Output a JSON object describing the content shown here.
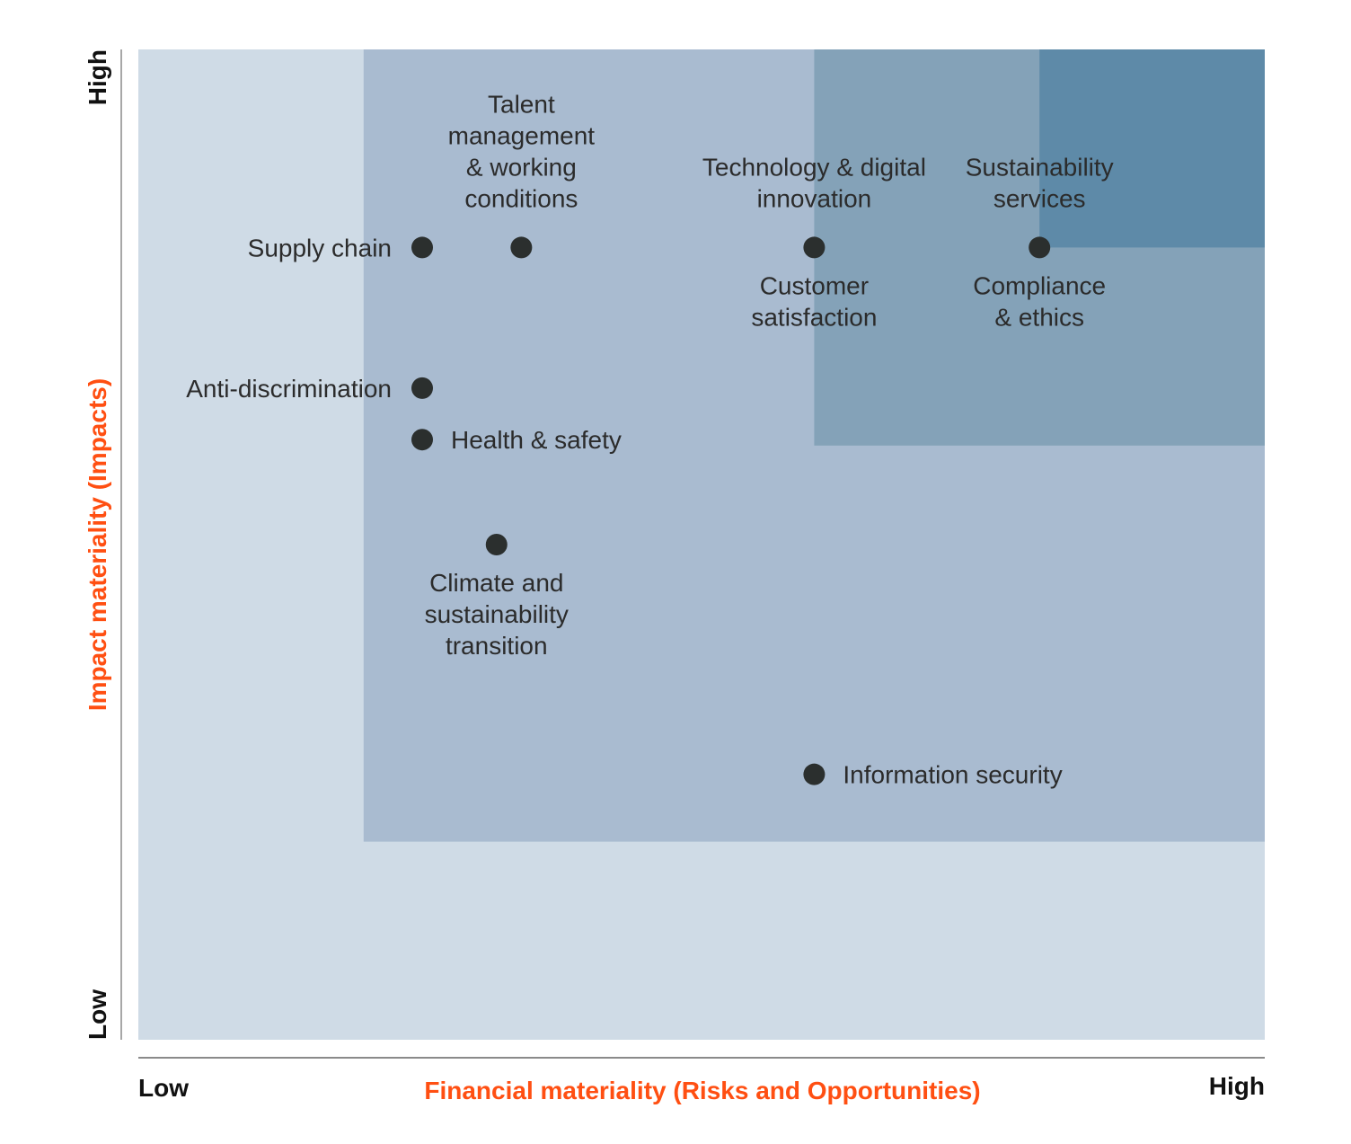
{
  "chart_data": {
    "type": "scatter",
    "title": "",
    "xlabel": "Financial materiality (Risks and Opportunities)",
    "ylabel": "Impact materiality (Impacts)",
    "x_low_label": "Low",
    "x_high_label": "High",
    "y_low_label": "Low",
    "y_high_label": "High",
    "xlim": [
      0,
      5
    ],
    "ylim": [
      0,
      5
    ],
    "grid": false,
    "zones": [
      {
        "x": [
          0,
          5
        ],
        "y": [
          0,
          5
        ],
        "color": "#cfdbe6"
      },
      {
        "x": [
          1,
          5
        ],
        "y": [
          1,
          5
        ],
        "color": "#a9bbd0"
      },
      {
        "x": [
          3,
          5
        ],
        "y": [
          3,
          5
        ],
        "color": "#84a2b8"
      },
      {
        "x": [
          4,
          5
        ],
        "y": [
          4,
          5
        ],
        "color": "#5e8aa8"
      }
    ],
    "point_color": "#2b2f2e",
    "points": [
      {
        "x": 1.26,
        "y": 4.0,
        "labels": [
          {
            "text": [
              "Supply chain"
            ],
            "position": "left"
          }
        ]
      },
      {
        "x": 1.7,
        "y": 4.0,
        "labels": [
          {
            "text": [
              "Talent",
              "management",
              "& working",
              "conditions"
            ],
            "position": "top"
          }
        ]
      },
      {
        "x": 3.0,
        "y": 4.0,
        "labels": [
          {
            "text": [
              "Technology & digital",
              "innovation"
            ],
            "position": "top"
          },
          {
            "text": [
              "Customer",
              "satisfaction"
            ],
            "position": "bottom"
          }
        ]
      },
      {
        "x": 4.0,
        "y": 4.0,
        "labels": [
          {
            "text": [
              "Sustainability",
              "services"
            ],
            "position": "top"
          },
          {
            "text": [
              "Compliance",
              "& ethics"
            ],
            "position": "bottom"
          }
        ]
      },
      {
        "x": 1.26,
        "y": 3.29,
        "labels": [
          {
            "text": [
              "Anti-discrimination"
            ],
            "position": "left"
          }
        ]
      },
      {
        "x": 1.26,
        "y": 3.03,
        "labels": [
          {
            "text": [
              "Health & safety"
            ],
            "position": "right"
          }
        ]
      },
      {
        "x": 1.59,
        "y": 2.5,
        "labels": [
          {
            "text": [
              "Climate and",
              "sustainability",
              "transition"
            ],
            "position": "bottom"
          }
        ]
      },
      {
        "x": 3.0,
        "y": 1.34,
        "labels": [
          {
            "text": [
              "Information security"
            ],
            "position": "right"
          }
        ]
      }
    ]
  }
}
